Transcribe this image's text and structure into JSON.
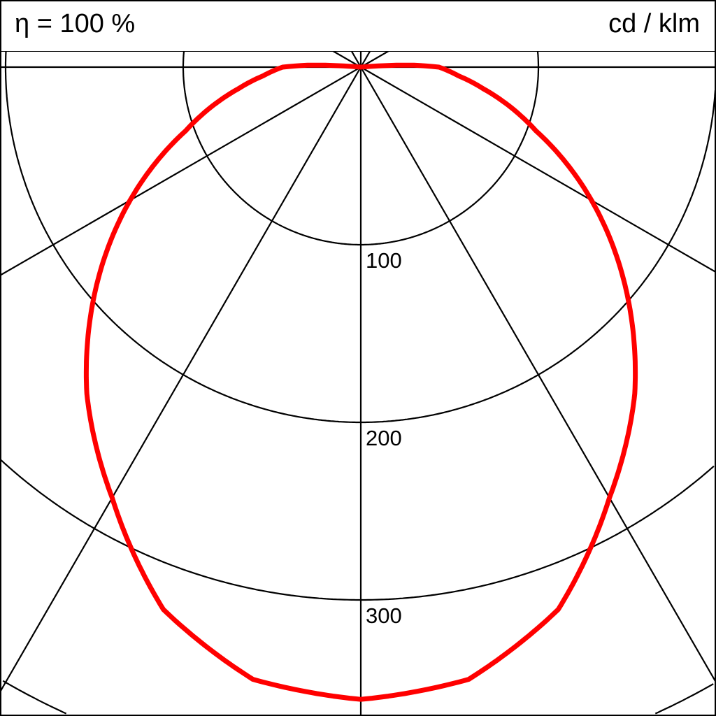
{
  "header": {
    "efficiency_label": "η = 100 %",
    "unit_label": "cd / klm"
  },
  "chart_data": {
    "type": "polar",
    "title": "",
    "unit": "cd / klm",
    "radial_ticks": [
      100,
      200,
      300,
      400
    ],
    "radial_tick_labels": [
      "100",
      "200",
      "300"
    ],
    "angle_gridlines_deg": [
      0,
      30,
      60,
      90,
      120,
      150,
      180
    ],
    "grid": true,
    "series": [
      {
        "color": "#ff0000",
        "symmetric": true,
        "angles_deg": [
          0,
          10,
          20,
          30,
          40,
          50,
          60,
          70,
          80,
          85,
          90,
          92,
          95
        ],
        "values": [
          356,
          350,
          325,
          280,
          240,
          195,
          150,
          105,
          70,
          55,
          44,
          30,
          0
        ]
      }
    ]
  }
}
